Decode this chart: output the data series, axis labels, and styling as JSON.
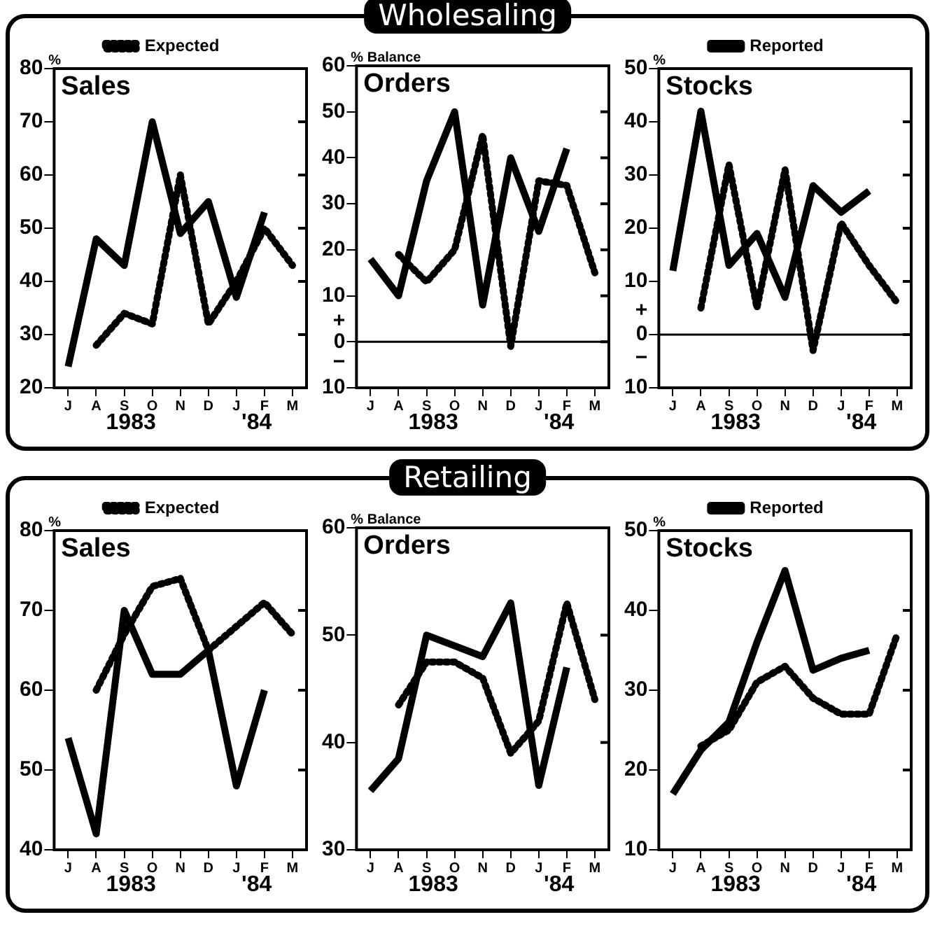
{
  "chart_data": [
    {
      "type": "line",
      "title": "Sales",
      "ylabel": "%",
      "categories": [
        "J",
        "A",
        "S",
        "O",
        "N",
        "D",
        "J",
        "F",
        "M"
      ],
      "ylim": [
        20,
        80
      ],
      "yticks": [
        20,
        30,
        40,
        50,
        60,
        70,
        80
      ],
      "legend": "top",
      "marker": "none",
      "annotations": [
        "1983",
        "'84"
      ],
      "series": [
        {
          "name": "Expected",
          "color": "#000000",
          "line_style": "dotted",
          "values": [
            null,
            28,
            34,
            32,
            60,
            32,
            40,
            50,
            43
          ]
        },
        {
          "color": "#000000",
          "line_style": "solid",
          "values": [
            24,
            48,
            43,
            70,
            49,
            55,
            37,
            53,
            null
          ]
        }
      ]
    },
    {
      "type": "line",
      "title": "Orders",
      "subtitle": "Wholesaling",
      "ylabel": "% Balance",
      "categories": [
        "J",
        "A",
        "S",
        "O",
        "N",
        "D",
        "J",
        "F",
        "M"
      ],
      "ylim": [
        -10,
        60
      ],
      "yticks": [
        {
          "value": -10,
          "label": "10"
        },
        0,
        10,
        20,
        30,
        40,
        50,
        60
      ],
      "ref_lines": [
        {
          "axis": "y",
          "value": 0
        }
      ],
      "marker": "none",
      "annotations": [
        "1983",
        "'84",
        "+",
        "−"
      ],
      "series": [
        {
          "color": "#000000",
          "line_style": "dotted",
          "values": [
            null,
            19,
            13,
            20,
            45,
            -1,
            35,
            34,
            15
          ]
        },
        {
          "color": "#000000",
          "line_style": "solid",
          "values": [
            18,
            10,
            35,
            50,
            8,
            40,
            24,
            42,
            null
          ]
        }
      ]
    },
    {
      "type": "line",
      "title": "Stocks",
      "ylabel": "%",
      "categories": [
        "J",
        "A",
        "S",
        "O",
        "N",
        "D",
        "J",
        "F",
        "M"
      ],
      "ylim": [
        -10,
        50
      ],
      "yticks": [
        {
          "value": -10,
          "label": "10"
        },
        0,
        10,
        20,
        30,
        40,
        50
      ],
      "ref_lines": [
        {
          "axis": "y",
          "value": 0
        }
      ],
      "legend": "top",
      "marker": "none",
      "annotations": [
        "1983",
        "'84",
        "+",
        "−"
      ],
      "series": [
        {
          "color": "#000000",
          "line_style": "dotted",
          "values": [
            null,
            5,
            32,
            5,
            31,
            -3,
            21,
            13,
            6
          ]
        },
        {
          "name": "Reported",
          "color": "#000000",
          "line_style": "solid",
          "values": [
            12,
            42,
            13,
            19,
            7,
            28,
            23,
            27,
            null
          ]
        }
      ]
    },
    {
      "type": "line",
      "title": "Sales",
      "ylabel": "%",
      "categories": [
        "J",
        "A",
        "S",
        "O",
        "N",
        "D",
        "J",
        "F",
        "M"
      ],
      "ylim": [
        40,
        80
      ],
      "yticks": [
        40,
        50,
        60,
        70,
        80
      ],
      "legend": "top",
      "marker": "none",
      "annotations": [
        "1983",
        "'84"
      ],
      "series": [
        {
          "name": "Expected",
          "color": "#000000",
          "line_style": "dotted",
          "values": [
            null,
            60,
            67,
            73,
            74,
            65,
            68,
            71,
            67
          ]
        },
        {
          "color": "#000000",
          "line_style": "solid",
          "values": [
            54,
            42,
            70,
            62,
            62,
            65,
            48,
            60,
            null
          ]
        }
      ]
    },
    {
      "type": "line",
      "title": "Orders",
      "subtitle": "Retailing",
      "ylabel": "% Balance",
      "categories": [
        "J",
        "A",
        "S",
        "O",
        "N",
        "D",
        "J",
        "F",
        "M"
      ],
      "ylim": [
        30,
        60
      ],
      "yticks": [
        30,
        40,
        50,
        60
      ],
      "marker": "none",
      "annotations": [
        "1983",
        "'84"
      ],
      "series": [
        {
          "color": "#000000",
          "line_style": "dotted",
          "values": [
            null,
            43.5,
            47.5,
            47.5,
            46,
            39,
            42,
            53,
            44
          ]
        },
        {
          "color": "#000000",
          "line_style": "solid",
          "values": [
            35.5,
            38.5,
            50,
            49,
            48,
            53,
            36,
            47,
            null
          ]
        }
      ]
    },
    {
      "type": "line",
      "title": "Stocks",
      "ylabel": "%",
      "categories": [
        "J",
        "A",
        "S",
        "O",
        "N",
        "D",
        "J",
        "F",
        "M"
      ],
      "ylim": [
        10,
        50
      ],
      "yticks": [
        10,
        20,
        30,
        40,
        50
      ],
      "legend": "top",
      "marker": "none",
      "annotations": [
        "1983",
        "'84"
      ],
      "series": [
        {
          "color": "#000000",
          "line_style": "dotted",
          "values": [
            null,
            23,
            25,
            31,
            33,
            29,
            27,
            27,
            37
          ]
        },
        {
          "name": "Reported",
          "color": "#000000",
          "line_style": "solid",
          "values": [
            17,
            22.5,
            26,
            36,
            45,
            32.5,
            34,
            35,
            null
          ]
        }
      ]
    }
  ]
}
